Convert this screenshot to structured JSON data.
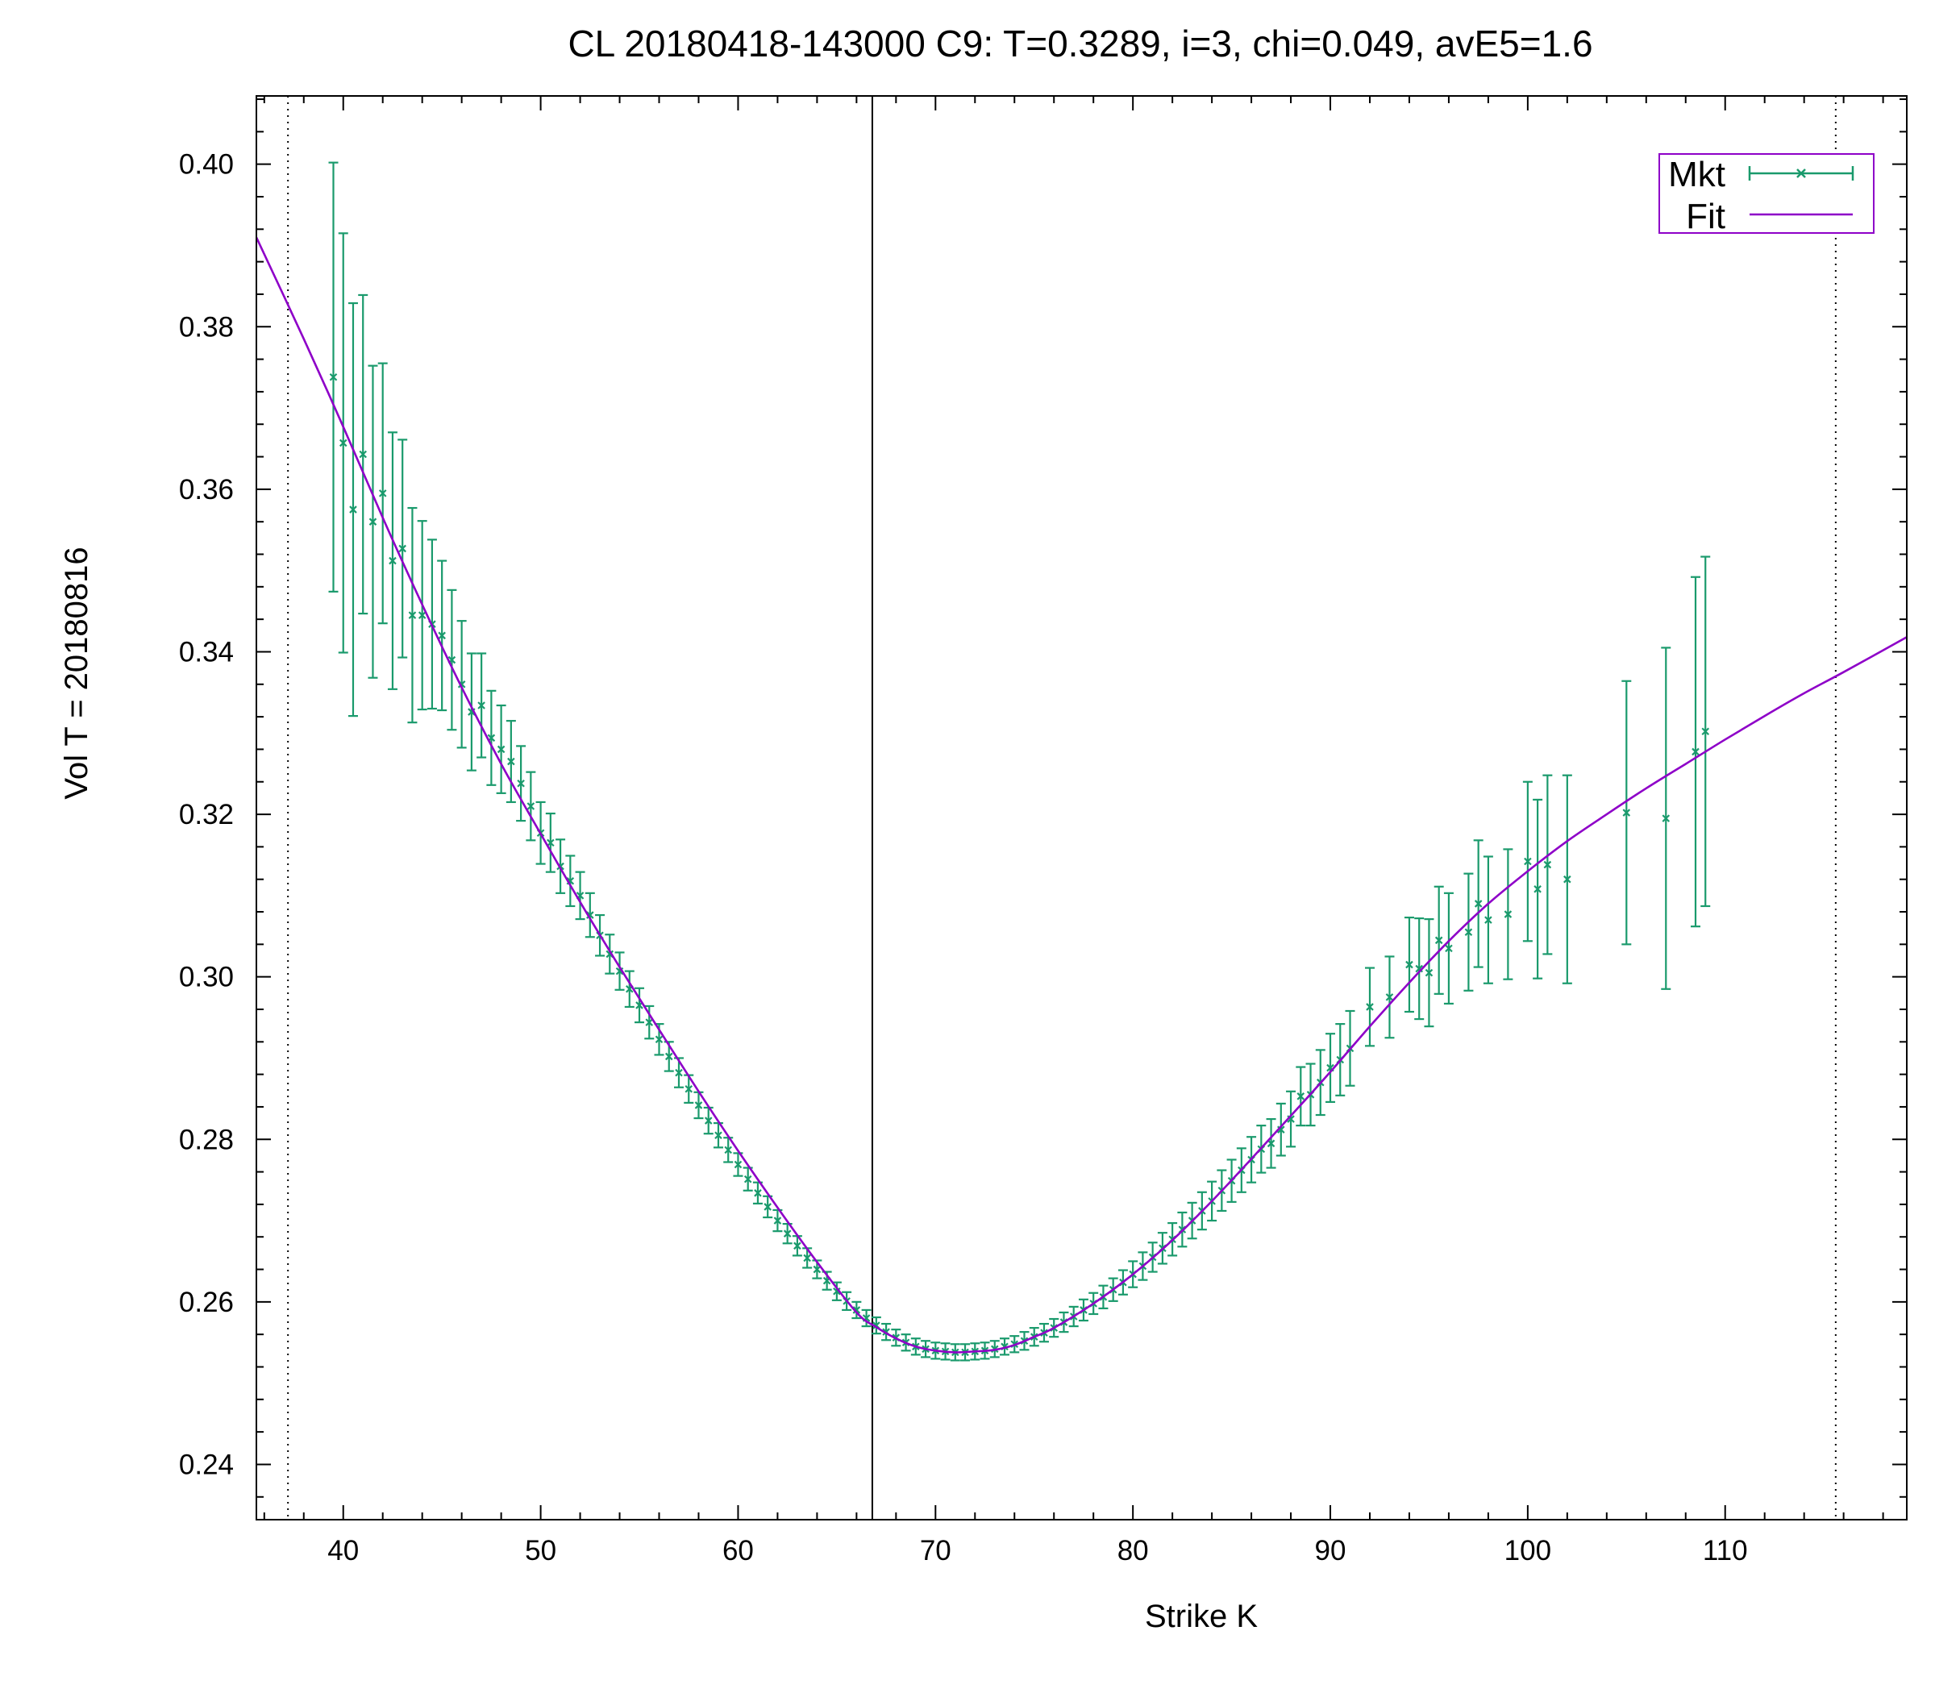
{
  "chart_data": {
    "type": "scatter",
    "title": "CL 20180418-143000  C9:  T=0.3289, i=3, chi=0.049, avE5=1.6",
    "xlabel": "Strike K",
    "ylabel": "Vol   T = 20180816",
    "xlim": [
      35.6,
      119.2
    ],
    "ylim": [
      0.2332,
      0.4084
    ],
    "x_ticks": [
      40,
      50,
      60,
      70,
      80,
      90,
      100,
      110
    ],
    "y_ticks": [
      0.24,
      0.26,
      0.28,
      0.3,
      0.32,
      0.34,
      0.36,
      0.38,
      0.4
    ],
    "y_tick_labels": [
      "0.24",
      "0.26",
      "0.28",
      "0.30",
      "0.32",
      "0.34",
      "0.36",
      "0.38",
      "0.40"
    ],
    "grid": false,
    "legend_position": "top-right",
    "vertical_lines": [
      {
        "x": 37.2,
        "style": "dotted"
      },
      {
        "x": 66.8,
        "style": "solid"
      },
      {
        "x": 115.6,
        "style": "dotted"
      }
    ],
    "colors": {
      "mkt": "#1a9a6c",
      "fit": "#8e00c8",
      "axis": "#000000"
    },
    "series": [
      {
        "name": "Mkt",
        "style": "points-errorbars",
        "x": [
          39.5,
          40.0,
          40.5,
          41.0,
          41.5,
          42.0,
          42.5,
          43.0,
          43.5,
          44.0,
          44.5,
          45.0,
          45.5,
          46.0,
          46.5,
          47.0,
          47.5,
          48.0,
          48.5,
          49.0,
          49.5,
          50.0,
          50.5,
          51.0,
          51.5,
          52.0,
          52.5,
          53.0,
          53.5,
          54.0,
          54.5,
          55.0,
          55.5,
          56.0,
          56.5,
          57.0,
          57.5,
          58.0,
          58.5,
          59.0,
          59.5,
          60.0,
          60.5,
          61.0,
          61.5,
          62.0,
          62.5,
          63.0,
          63.5,
          64.0,
          64.5,
          65.0,
          65.5,
          66.0,
          66.5,
          67.0,
          67.5,
          68.0,
          68.5,
          69.0,
          69.5,
          70.0,
          70.5,
          71.0,
          71.5,
          72.0,
          72.5,
          73.0,
          73.5,
          74.0,
          74.5,
          75.0,
          75.5,
          76.0,
          76.5,
          77.0,
          77.5,
          78.0,
          78.5,
          79.0,
          79.5,
          80.0,
          80.5,
          81.0,
          81.5,
          82.0,
          82.5,
          83.0,
          83.5,
          84.0,
          84.5,
          85.0,
          85.5,
          86.0,
          86.5,
          87.0,
          87.5,
          88.0,
          88.5,
          89.0,
          89.5,
          90.0,
          90.5,
          91.0,
          92.0,
          93.0,
          94.0,
          94.5,
          95.0,
          95.5,
          96.0,
          97.0,
          97.5,
          98.0,
          99.0,
          100.0,
          100.5,
          101.0,
          102.0,
          105.0,
          107.0,
          108.5,
          109.0
        ],
        "y": [
          0.3738,
          0.3657,
          0.3575,
          0.3643,
          0.356,
          0.3595,
          0.3512,
          0.3527,
          0.3445,
          0.3445,
          0.3434,
          0.342,
          0.339,
          0.336,
          0.3326,
          0.3334,
          0.3294,
          0.328,
          0.3265,
          0.3238,
          0.321,
          0.3177,
          0.3165,
          0.3136,
          0.3118,
          0.31,
          0.3076,
          0.3051,
          0.3028,
          0.3007,
          0.2985,
          0.2965,
          0.2944,
          0.2923,
          0.2902,
          0.2882,
          0.2862,
          0.2842,
          0.2823,
          0.2805,
          0.2787,
          0.2769,
          0.2751,
          0.2734,
          0.2717,
          0.27,
          0.2684,
          0.2669,
          0.2654,
          0.264,
          0.2626,
          0.2613,
          0.2601,
          0.259,
          0.258,
          0.2571,
          0.2563,
          0.2556,
          0.255,
          0.2545,
          0.2542,
          0.254,
          0.2539,
          0.2538,
          0.2538,
          0.2539,
          0.254,
          0.2542,
          0.2545,
          0.2548,
          0.2552,
          0.2557,
          0.2562,
          0.2568,
          0.2575,
          0.2582,
          0.259,
          0.2598,
          0.2606,
          0.2615,
          0.2624,
          0.2634,
          0.2644,
          0.2655,
          0.2666,
          0.2677,
          0.2689,
          0.27,
          0.2712,
          0.2724,
          0.2737,
          0.2749,
          0.2762,
          0.2775,
          0.2788,
          0.2795,
          0.2812,
          0.2825,
          0.2853,
          0.2855,
          0.287,
          0.2888,
          0.2898,
          0.2912,
          0.2963,
          0.2975,
          0.3015,
          0.301,
          0.3005,
          0.3045,
          0.3035,
          0.3055,
          0.309,
          0.307,
          0.3077,
          0.3142,
          0.3108,
          0.3138,
          0.312,
          0.3202,
          0.3195,
          0.3277,
          0.3302
        ],
        "error": [
          0.0264,
          0.0258,
          0.0254,
          0.0196,
          0.0192,
          0.016,
          0.0158,
          0.0134,
          0.0132,
          0.0116,
          0.0104,
          0.0092,
          0.0086,
          0.0078,
          0.0072,
          0.0064,
          0.0058,
          0.0054,
          0.005,
          0.0046,
          0.0042,
          0.0038,
          0.0036,
          0.0033,
          0.0031,
          0.0029,
          0.0027,
          0.0025,
          0.0024,
          0.0023,
          0.0022,
          0.0021,
          0.002,
          0.0019,
          0.0018,
          0.0018,
          0.0017,
          0.0016,
          0.0016,
          0.0015,
          0.0015,
          0.0014,
          0.0014,
          0.0013,
          0.0013,
          0.0013,
          0.0012,
          0.0012,
          0.0012,
          0.0011,
          0.0011,
          0.0011,
          0.0011,
          0.001,
          0.001,
          0.001,
          0.001,
          0.001,
          0.001,
          0.001,
          0.001,
          0.001,
          0.001,
          0.001,
          0.001,
          0.001,
          0.001,
          0.001,
          0.001,
          0.001,
          0.0011,
          0.0011,
          0.0011,
          0.0011,
          0.0012,
          0.0012,
          0.0013,
          0.0013,
          0.0014,
          0.0014,
          0.0015,
          0.0016,
          0.0017,
          0.0018,
          0.0019,
          0.002,
          0.0021,
          0.0022,
          0.0023,
          0.0024,
          0.0025,
          0.0026,
          0.0027,
          0.0028,
          0.0029,
          0.003,
          0.0032,
          0.0034,
          0.0036,
          0.0038,
          0.004,
          0.0042,
          0.0044,
          0.0046,
          0.0048,
          0.005,
          0.0058,
          0.0062,
          0.0066,
          0.0066,
          0.0068,
          0.0072,
          0.0078,
          0.0078,
          0.008,
          0.0098,
          0.011,
          0.011,
          0.0128,
          0.0162,
          0.021,
          0.0215,
          0.0215
        ]
      },
      {
        "name": "Fit",
        "style": "line",
        "x": [
          35.6,
          38,
          40,
          42,
          44,
          46,
          48,
          50,
          52,
          54,
          56,
          58,
          60,
          62,
          64,
          66,
          67,
          68,
          69,
          70,
          71,
          72,
          73,
          74,
          75,
          76,
          78,
          80,
          82,
          84,
          86,
          88,
          90,
          92,
          94,
          96,
          98,
          100,
          102,
          104,
          106,
          108,
          110,
          112,
          114,
          116,
          119.2
        ],
        "y": [
          0.391,
          0.3785,
          0.3677,
          0.3565,
          0.3458,
          0.3356,
          0.3262,
          0.3176,
          0.3092,
          0.3012,
          0.2935,
          0.2859,
          0.2786,
          0.2716,
          0.2649,
          0.2587,
          0.2569,
          0.2555,
          0.2545,
          0.254,
          0.2538,
          0.2539,
          0.2541,
          0.2547,
          0.2557,
          0.2568,
          0.2598,
          0.2634,
          0.2676,
          0.2724,
          0.2776,
          0.2829,
          0.2883,
          0.2939,
          0.2993,
          0.3044,
          0.309,
          0.313,
          0.3167,
          0.32,
          0.3232,
          0.3262,
          0.3292,
          0.3321,
          0.3349,
          0.3375,
          0.3418
        ]
      }
    ]
  }
}
